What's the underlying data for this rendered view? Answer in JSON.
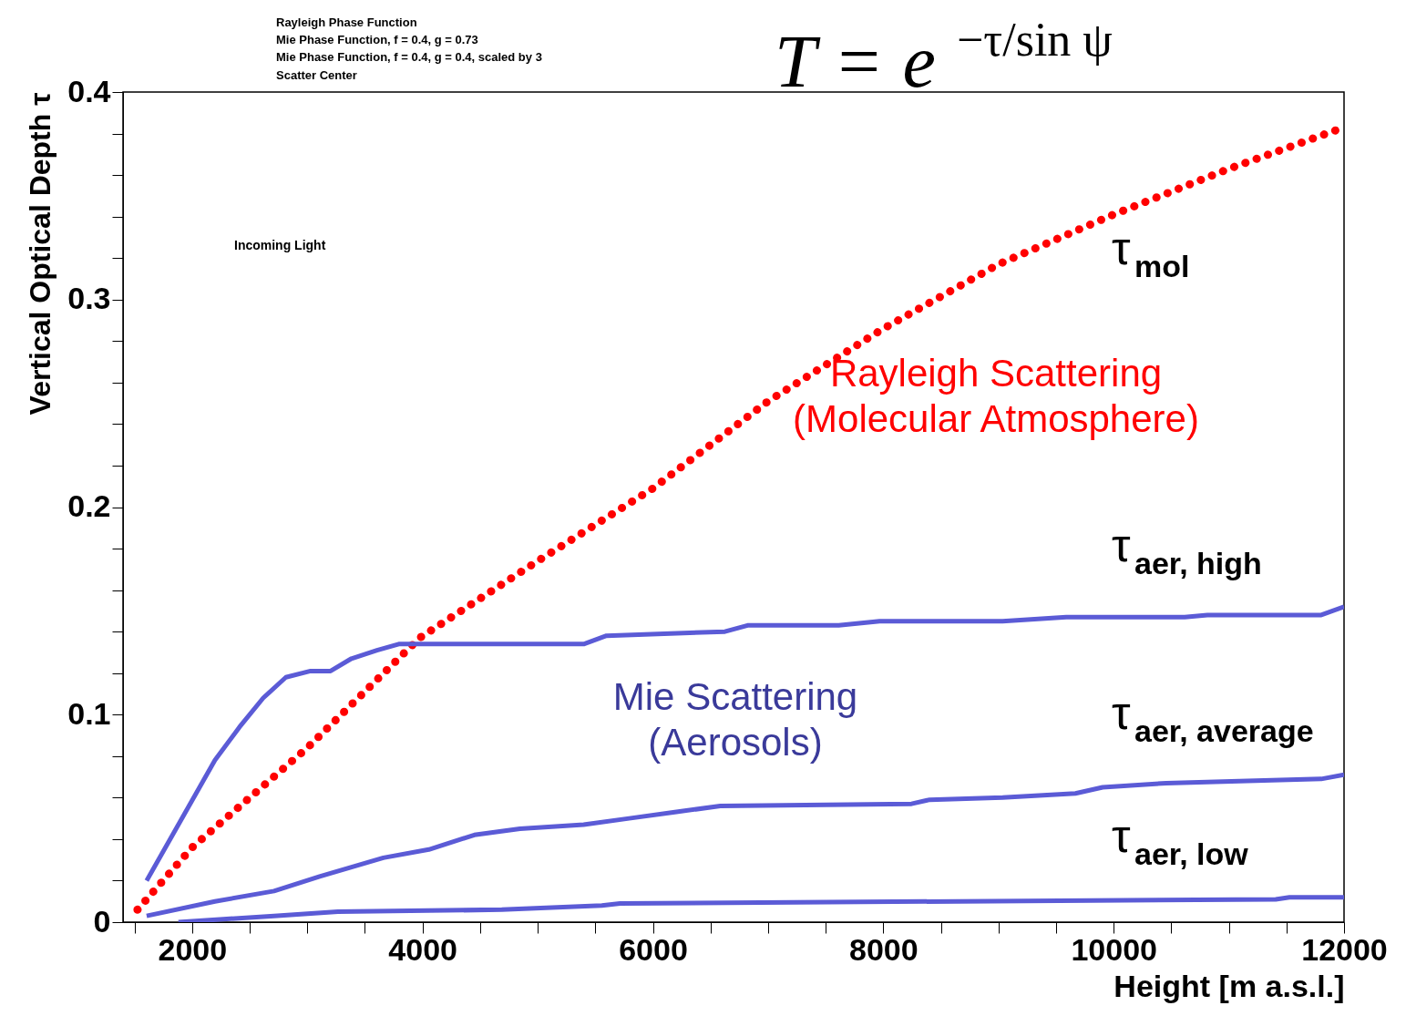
{
  "chart_data": {
    "type": "line",
    "title": "T = e$^{−τ/sin ψ}$",
    "xlabel": "Height [m a.s.l.]",
    "ylabel": "Vertical Optical Depth τ",
    "xlim": [
      1400,
      12000
    ],
    "ylim": [
      0,
      0.4
    ],
    "xticks": [
      {
        "value": 1500,
        "label": null
      },
      2000,
      {
        "value": 2500,
        "label": null
      },
      {
        "value": 3000,
        "label": null
      },
      {
        "value": 3500,
        "label": null
      },
      4000,
      {
        "value": 4500,
        "label": null
      },
      {
        "value": 5000,
        "label": null
      },
      {
        "value": 5500,
        "label": null
      },
      6000,
      {
        "value": 6500,
        "label": null
      },
      {
        "value": 7000,
        "label": null
      },
      {
        "value": 7500,
        "label": null
      },
      8000,
      {
        "value": 8500,
        "label": null
      },
      {
        "value": 9000,
        "label": null
      },
      {
        "value": 9500,
        "label": null
      },
      10000,
      {
        "value": 10500,
        "label": null
      },
      {
        "value": 11000,
        "label": null
      },
      {
        "value": 11500,
        "label": null
      },
      12000
    ],
    "yticks": [
      0,
      {
        "value": 0.02,
        "label": null
      },
      {
        "value": 0.04,
        "label": null
      },
      {
        "value": 0.06,
        "label": null
      },
      {
        "value": 0.08,
        "label": null
      },
      0.1,
      {
        "value": 0.12,
        "label": null
      },
      {
        "value": 0.14,
        "label": null
      },
      {
        "value": 0.16,
        "label": null
      },
      {
        "value": 0.18,
        "label": null
      },
      0.2,
      {
        "value": 0.22,
        "label": null
      },
      {
        "value": 0.24,
        "label": null
      },
      {
        "value": 0.26,
        "label": null
      },
      {
        "value": 0.28,
        "label": null
      },
      0.3,
      {
        "value": 0.32,
        "label": null
      },
      {
        "value": 0.34,
        "label": null
      },
      {
        "value": 0.36,
        "label": null
      },
      {
        "value": 0.38,
        "label": null
      },
      0.4
    ],
    "grid": false,
    "series": [
      {
        "name": "τ$_{mol}$",
        "color": "#ff0000",
        "line_style": "dotted",
        "x": [
          1526,
          2000,
          2500,
          3000,
          3976,
          5000,
          6000,
          7000,
          8000,
          9000,
          10000,
          11000,
          12000
        ],
        "values": [
          0.006,
          0.036,
          0.06,
          0.084,
          0.137,
          0.174,
          0.209,
          0.251,
          0.286,
          0.317,
          0.341,
          0.363,
          0.383
        ]
      },
      {
        "name": "τ$_{aer, high}$",
        "color": "#5b5bd6",
        "line_style": "solid",
        "x": [
          1605,
          2198,
          2411,
          2617,
          2814,
          3028,
          3202,
          3383,
          3605,
          3794,
          5399,
          5597,
          6625,
          6822,
          7613,
          7968,
          9036,
          9589,
          10617,
          10814,
          11802,
          12000
        ],
        "values": [
          0.02,
          0.078,
          0.094,
          0.108,
          0.118,
          0.121,
          0.121,
          0.127,
          0.131,
          0.134,
          0.134,
          0.138,
          0.14,
          0.143,
          0.143,
          0.145,
          0.145,
          0.147,
          0.147,
          0.148,
          0.148,
          0.152
        ]
      },
      {
        "name": "τ$_{aer, average}$",
        "color": "#5b5bd6",
        "line_style": "solid",
        "x": [
          1605,
          2198,
          2711,
          3107,
          3660,
          4055,
          4450,
          4846,
          5399,
          5794,
          6190,
          6585,
          8245,
          8403,
          9036,
          9668,
          9905,
          10458,
          11091,
          11802,
          12000
        ],
        "values": [
          0.003,
          0.01,
          0.015,
          0.022,
          0.031,
          0.035,
          0.042,
          0.045,
          0.047,
          0.05,
          0.053,
          0.056,
          0.057,
          0.059,
          0.06,
          0.062,
          0.065,
          0.067,
          0.068,
          0.069,
          0.071
        ]
      },
      {
        "name": "τ$_{aer, low}$",
        "color": "#5b5bd6",
        "line_style": "solid",
        "x": [
          1881,
          2711,
          3265,
          4688,
          5557,
          5715,
          11407,
          11526,
          12000
        ],
        "values": [
          0.0,
          0.003,
          0.005,
          0.006,
          0.008,
          0.009,
          0.011,
          0.012,
          0.012
        ]
      }
    ],
    "annotations": [
      "Rayleigh Scattering\n(Molecular Atmosphere)",
      "Mie Scattering\n(Aerosols)",
      "Rayleigh Phase Function",
      "Mie Phase Function, f = 0.4, g = 0.73",
      "Mie Phase Function, f = 0.4, g = 0.4, scaled by 3",
      "Scatter Center",
      "Incoming Light"
    ]
  }
}
